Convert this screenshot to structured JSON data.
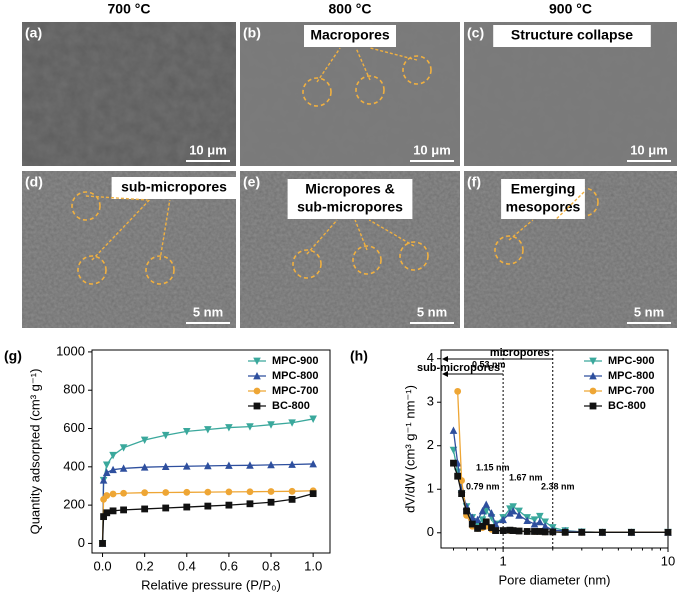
{
  "images": {
    "columns": [
      "700 °C",
      "800 °C",
      "900 °C"
    ],
    "panels": [
      {
        "label": "(a)",
        "scale": "10 μm"
      },
      {
        "label": "(b)",
        "caption": [
          "Macropores"
        ],
        "scale": "10 μm"
      },
      {
        "label": "(c)",
        "caption": [
          "Structure collapse"
        ],
        "scale": "10 μm"
      },
      {
        "label": "(d)",
        "caption": [
          "sub-micropores"
        ],
        "scale": "5 nm"
      },
      {
        "label": "(e)",
        "caption": [
          "Micropores &",
          "sub-micropores"
        ],
        "scale": "5 nm"
      },
      {
        "label": "(f)",
        "caption": [
          "Emerging",
          "mesopores"
        ],
        "scale": "5 nm"
      }
    ]
  },
  "chart_data": [
    {
      "type": "line",
      "panel_label": "(g)",
      "x_label": "Relative pressure (P/P₀)",
      "y_label": "Quantity adsorpted (cm³ g⁻¹)",
      "xlim": [
        -0.05,
        1.08
      ],
      "ylim": [
        -50,
        1010
      ],
      "xticks": [
        {
          "value": 0,
          "label": "0.0"
        },
        0.2,
        0.4,
        0.6,
        0.8,
        {
          "value": 1,
          "label": "1.0"
        }
      ],
      "yticks": [
        0,
        200,
        400,
        600,
        800,
        1000
      ],
      "legend": "upper right",
      "x": [
        0,
        0.005,
        0.02,
        0.05,
        0.1,
        0.2,
        0.3,
        0.4,
        0.5,
        0.6,
        0.7,
        0.8,
        0.9,
        1.0
      ],
      "series": [
        {
          "name": "MPC-900",
          "color": "#3aa89c",
          "marker": "triangle-down",
          "values": [
            0,
            330,
            410,
            460,
            500,
            540,
            565,
            585,
            595,
            605,
            610,
            620,
            630,
            650
          ]
        },
        {
          "name": "MPC-800",
          "color": "#2e4f9e",
          "marker": "triangle-up",
          "values": [
            0,
            330,
            370,
            385,
            392,
            398,
            401,
            403,
            405,
            407,
            408,
            410,
            412,
            415
          ]
        },
        {
          "name": "MPC-700",
          "color": "#eea635",
          "marker": "circle",
          "values": [
            0,
            230,
            250,
            258,
            262,
            265,
            266,
            267,
            268,
            269,
            270,
            271,
            272,
            275
          ]
        },
        {
          "name": "BC-800",
          "color": "#111111",
          "marker": "square",
          "values": [
            0,
            140,
            160,
            170,
            175,
            180,
            185,
            190,
            195,
            200,
            207,
            215,
            230,
            260
          ]
        }
      ]
    },
    {
      "type": "line",
      "panel_label": "(h)",
      "xscale": "log",
      "x_label": "Pore diameter (nm)",
      "y_label": "dV/dW (cm³ g⁻¹ nm⁻¹)",
      "xlim": [
        0.42,
        10
      ],
      "ylim": [
        -0.35,
        4.2
      ],
      "xticks": [
        1,
        10
      ],
      "yticks": [
        0,
        1,
        2,
        3,
        4
      ],
      "legend": "upper right",
      "ranges": [
        {
          "text": "micropores",
          "to": 2
        },
        {
          "text": "sub-micropores",
          "to": 1
        }
      ],
      "annotations": [
        "0.53 nm",
        "0.79 nm",
        "1.15 nm",
        "1.67 nm",
        "2.38 nm"
      ],
      "x": [
        0.5,
        0.53,
        0.56,
        0.6,
        0.65,
        0.7,
        0.75,
        0.79,
        0.85,
        0.9,
        1.0,
        1.1,
        1.15,
        1.25,
        1.4,
        1.55,
        1.67,
        1.8,
        2.0,
        2.38,
        3,
        4,
        6,
        10
      ],
      "series": [
        {
          "name": "MPC-900",
          "color": "#3aa89c",
          "marker": "triangle-down",
          "values": [
            1.9,
            1.4,
            0.9,
            0.6,
            0.35,
            0.2,
            0.3,
            0.5,
            0.35,
            0.2,
            0.35,
            0.55,
            0.6,
            0.5,
            0.35,
            0.3,
            0.38,
            0.25,
            0.12,
            0.05,
            0.02,
            0.01,
            0.01,
            0.01
          ]
        },
        {
          "name": "MPC-800",
          "color": "#2e4f9e",
          "marker": "triangle-up",
          "values": [
            2.35,
            1.6,
            1.0,
            0.6,
            0.35,
            0.3,
            0.5,
            0.65,
            0.45,
            0.2,
            0.3,
            0.45,
            0.5,
            0.4,
            0.28,
            0.2,
            0.25,
            0.15,
            0.06,
            0.04,
            0.02,
            0.01,
            0.01,
            0.01
          ]
        },
        {
          "name": "MPC-700",
          "color": "#eea635",
          "marker": "circle",
          "values": [
            null,
            3.25,
            1.2,
            0.4,
            0.15,
            0.1,
            0.12,
            0.15,
            0.08,
            0.05,
            0.05,
            0.05,
            0.05,
            0.04,
            0.03,
            0.03,
            0.03,
            0.02,
            0.02,
            0.01,
            0.01,
            0.01,
            0.01,
            0.01
          ]
        },
        {
          "name": "BC-800",
          "color": "#111111",
          "marker": "square",
          "values": [
            1.6,
            1.3,
            0.9,
            0.5,
            0.2,
            0.1,
            0.15,
            0.25,
            0.12,
            0.05,
            0.05,
            0.06,
            0.05,
            0.04,
            0.03,
            0.03,
            0.03,
            0.02,
            0.02,
            0.01,
            0.01,
            0.01,
            0.01,
            0.01
          ]
        }
      ]
    }
  ]
}
